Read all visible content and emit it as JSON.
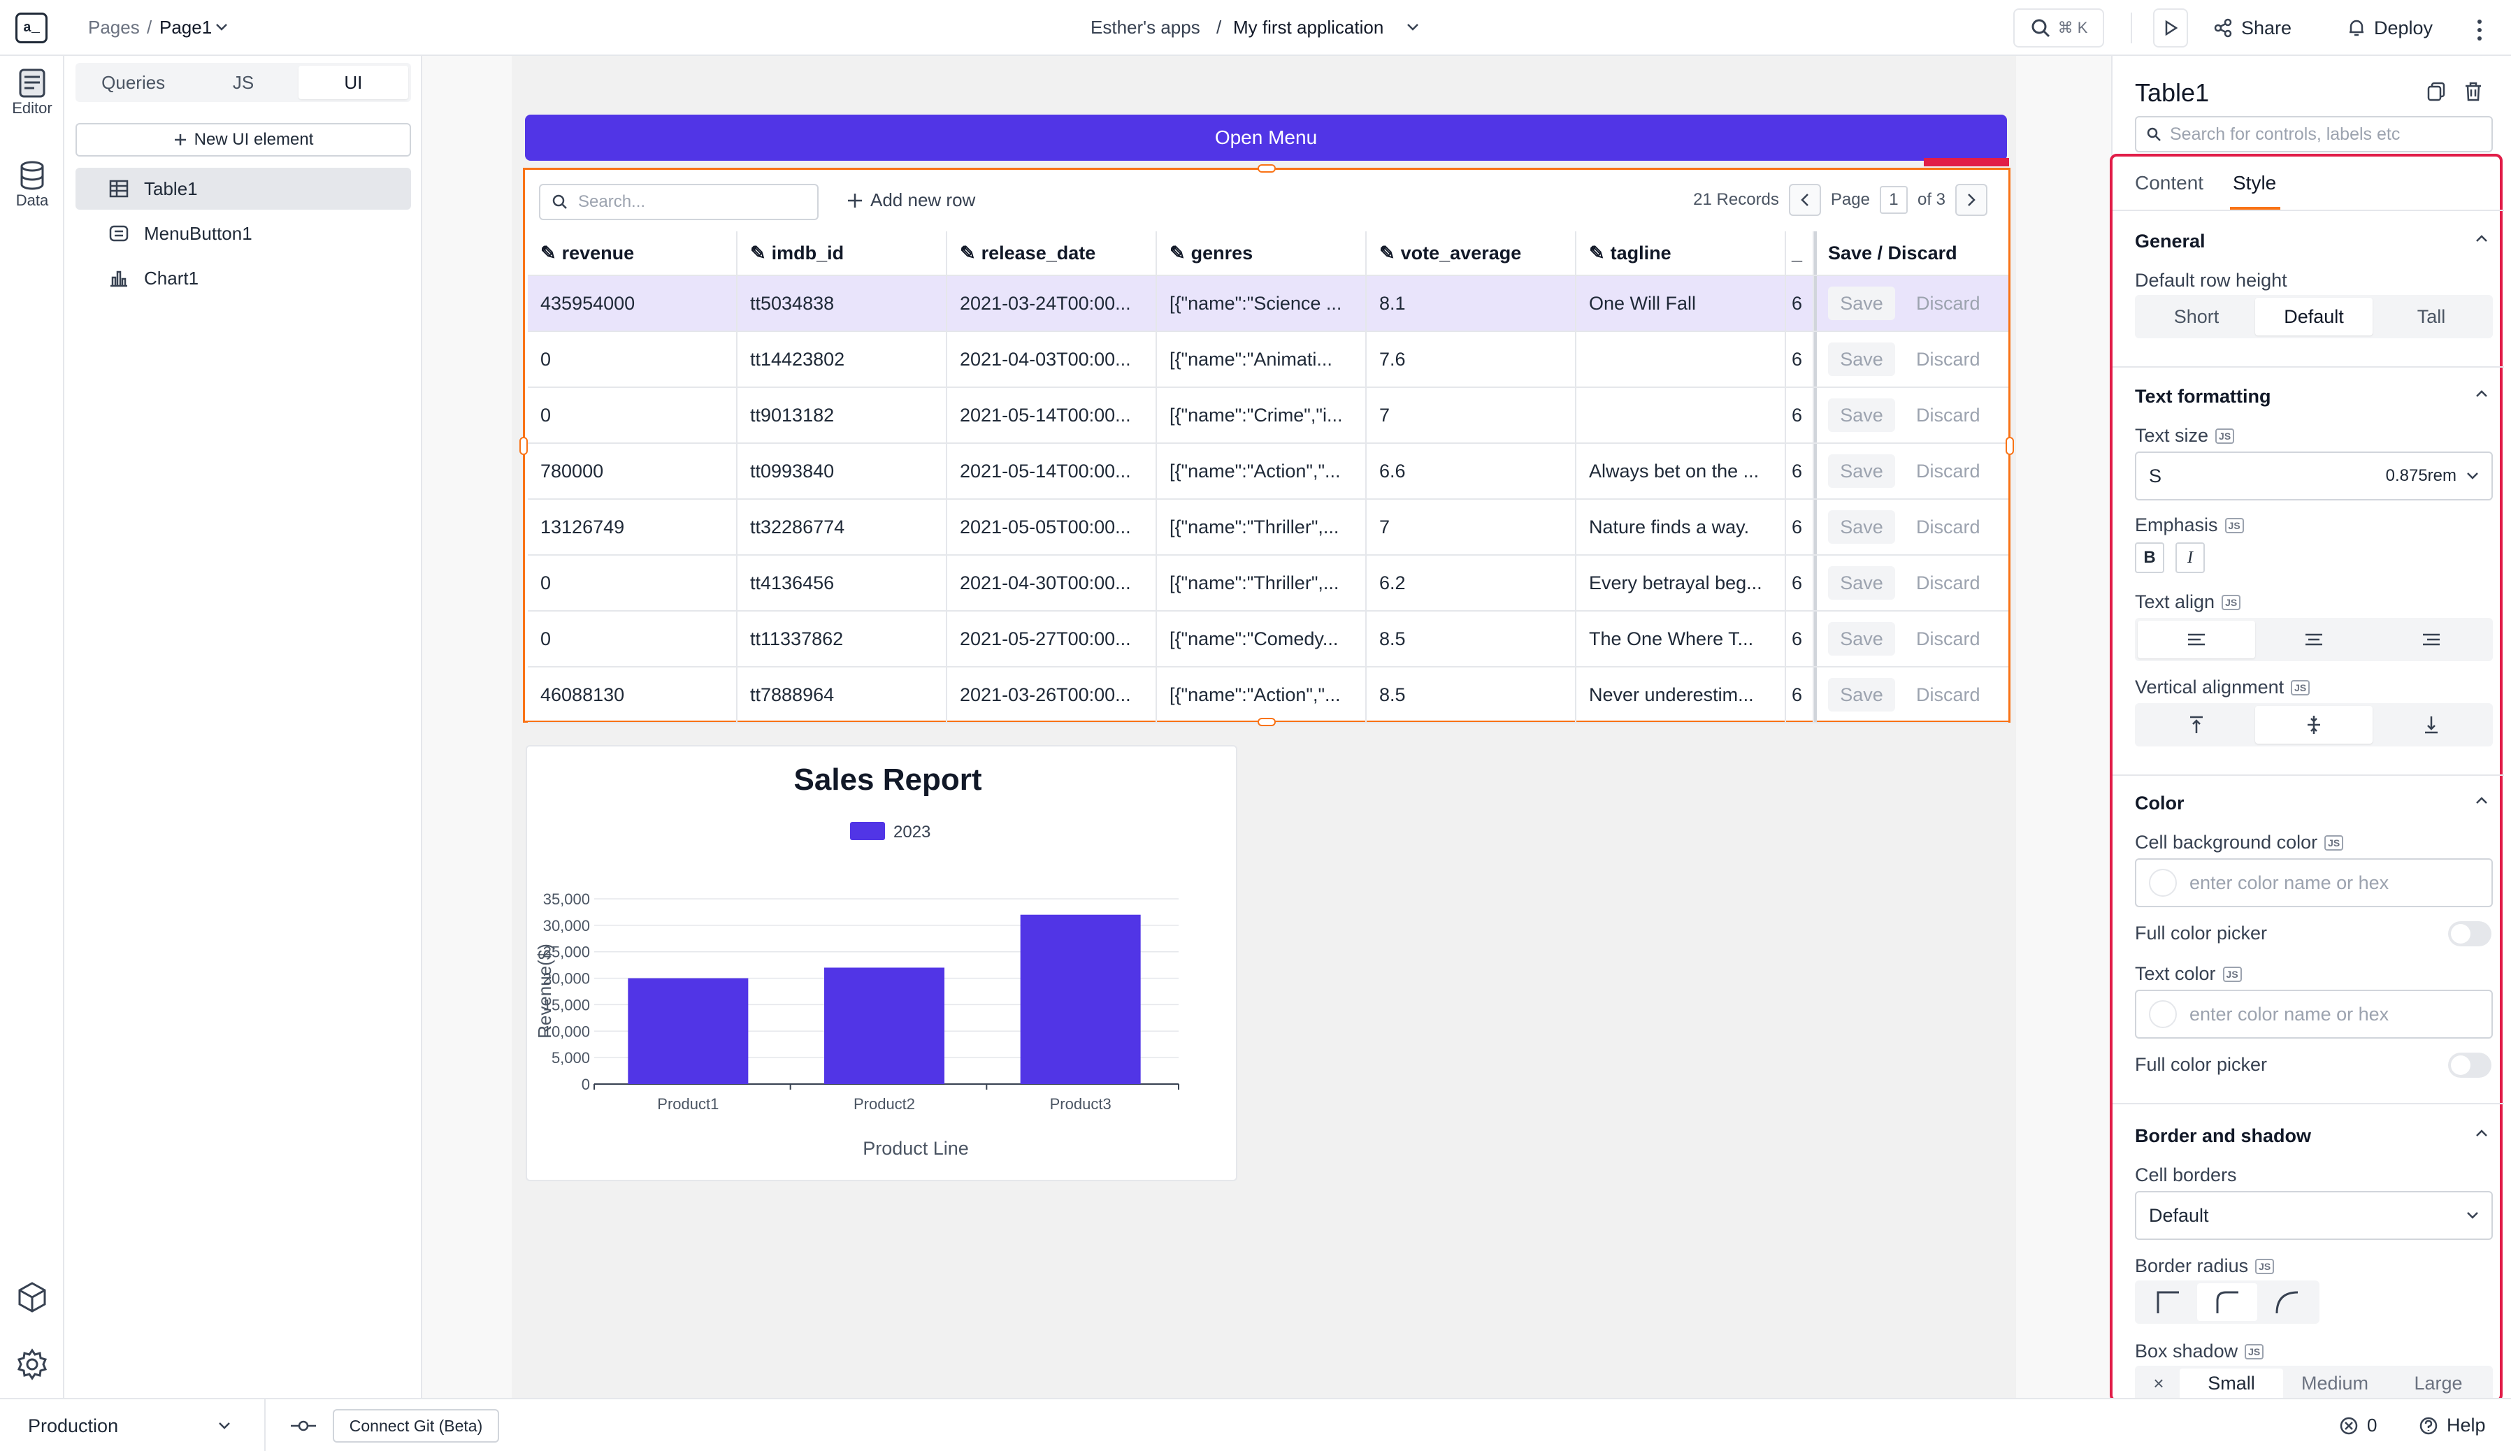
{
  "topbar": {
    "logo": "a_",
    "breadcrumb_pages": "Pages",
    "breadcrumb_sep": "/",
    "breadcrumb_page": "Page1",
    "workspace": "Esther's apps",
    "app_sep": "/",
    "app_name": "My first application",
    "search_shortcut": "⌘ K",
    "share_label": "Share",
    "deploy_label": "Deploy"
  },
  "rail": {
    "editor_label": "Editor",
    "data_label": "Data"
  },
  "explorer": {
    "tabs": [
      "Queries",
      "JS",
      "UI"
    ],
    "active_tab": "UI",
    "new_ui_label": "New UI element",
    "items": [
      {
        "label": "Table1",
        "icon": "table-icon",
        "selected": true
      },
      {
        "label": "MenuButton1",
        "icon": "menubutton-icon",
        "selected": false
      },
      {
        "label": "Chart1",
        "icon": "chart-icon",
        "selected": false
      }
    ]
  },
  "canvas": {
    "open_menu_label": "Open Menu",
    "table": {
      "search_placeholder": "Search...",
      "add_row_label": "Add new row",
      "records": "21 Records",
      "page_label": "Page",
      "page_current": "1",
      "page_total": "of 3",
      "columns": [
        "revenue",
        "imdb_id",
        "release_date",
        "genres",
        "vote_average",
        "tagline",
        "_",
        "Save / Discard"
      ],
      "save_label": "Save",
      "discard_label": "Discard",
      "rows": [
        [
          "435954000",
          "tt5034838",
          "2021-03-24T00:00...",
          "[{\"name\":\"Science ...",
          "8.1",
          "One Will Fall",
          "6"
        ],
        [
          "0",
          "tt14423802",
          "2021-04-03T00:00...",
          "[{\"name\":\"Animati...",
          "7.6",
          "",
          "6"
        ],
        [
          "0",
          "tt9013182",
          "2021-05-14T00:00...",
          "[{\"name\":\"Crime\",\"i...",
          "7",
          "",
          "6"
        ],
        [
          "780000",
          "tt0993840",
          "2021-05-14T00:00...",
          "[{\"name\":\"Action\",\"...",
          "6.6",
          "Always bet on the ...",
          "6"
        ],
        [
          "13126749",
          "tt32286774",
          "2021-05-05T00:00...",
          "[{\"name\":\"Thriller\",...",
          "7",
          "Nature finds a way.",
          "6"
        ],
        [
          "0",
          "tt4136456",
          "2021-04-30T00:00...",
          "[{\"name\":\"Thriller\",...",
          "6.2",
          "Every betrayal beg...",
          "6"
        ],
        [
          "0",
          "tt11337862",
          "2021-05-27T00:00...",
          "[{\"name\":\"Comedy...",
          "8.5",
          "The One Where T...",
          "6"
        ],
        [
          "46088130",
          "tt7888964",
          "2021-03-26T00:00...",
          "[{\"name\":\"Action\",\"...",
          "8.5",
          "Never underestim...",
          "6"
        ]
      ]
    }
  },
  "chart_data": {
    "type": "bar",
    "title": "Sales Report",
    "categories": [
      "Product1",
      "Product2",
      "Product3"
    ],
    "series": [
      {
        "name": "2023",
        "values": [
          20000,
          22000,
          32000
        ],
        "color": "#5135e6"
      }
    ],
    "xlabel": "Product Line",
    "ylabel": "Revenue($)",
    "ylim": [
      0,
      35000
    ],
    "yticks": [
      "0",
      "5,000",
      "10,000",
      "15,000",
      "20,000",
      "25,000",
      "30,000",
      "35,000"
    ],
    "grid": true,
    "legend": "top"
  },
  "props": {
    "widget_name": "Table1",
    "search_placeholder": "Search for controls, labels etc",
    "tabs": [
      "Content",
      "Style"
    ],
    "active_tab": "Style",
    "general": {
      "title": "General",
      "row_height_label": "Default row height",
      "row_height_options": [
        "Short",
        "Default",
        "Tall"
      ],
      "row_height_selected": "Default"
    },
    "text_formatting": {
      "title": "Text formatting",
      "text_size_label": "Text size",
      "text_size_value": "S",
      "text_size_rem": "0.875rem",
      "emphasis_label": "Emphasis",
      "bold": "B",
      "italic": "I",
      "text_align_label": "Text align",
      "vertical_align_label": "Vertical alignment"
    },
    "color": {
      "title": "Color",
      "cell_bg_label": "Cell background color",
      "cell_bg_placeholder": "enter color name or hex",
      "full_picker_label": "Full color picker",
      "text_color_label": "Text color",
      "text_color_placeholder": "enter color name or hex",
      "full_picker_label_2": "Full color picker"
    },
    "border": {
      "title": "Border and shadow",
      "cell_borders_label": "Cell borders",
      "cell_borders_value": "Default",
      "radius_label": "Border radius",
      "shadow_label": "Box shadow",
      "shadow_options": [
        "Small",
        "Medium",
        "Large"
      ]
    },
    "js_badge": "JS"
  },
  "bottombar": {
    "environment": "Production",
    "git_label": "Connect Git (Beta)",
    "error_count": "0",
    "help_label": "Help"
  },
  "colors": {
    "accent": "#5135e6",
    "selection": "#f97316",
    "highlight": "#e11d48",
    "selected_row": "#e9e4fb"
  }
}
